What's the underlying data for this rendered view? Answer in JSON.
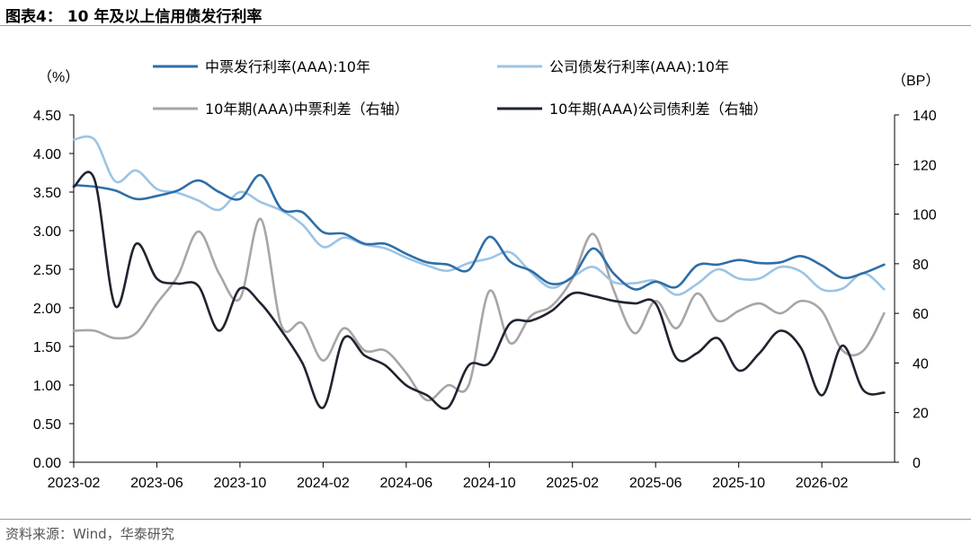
{
  "title": "图表4：  10 年及以上信用债发行利率",
  "source": "资料来源：Wind，华泰研究",
  "chart_data": {
    "type": "line",
    "x_ticks": [
      "2023-02",
      "2023-06",
      "2023-10",
      "2024-02",
      "2024-06",
      "2024-10",
      "2025-02",
      "2025-06",
      "2025-10",
      "2026-02"
    ],
    "x_range": [
      0,
      39.5
    ],
    "left_axis": {
      "unit": "（%）",
      "ylim": [
        0,
        4.5
      ],
      "ticks": [
        "0.00",
        "0.50",
        "1.00",
        "1.50",
        "2.00",
        "2.50",
        "3.00",
        "3.50",
        "4.00",
        "4.50"
      ]
    },
    "right_axis": {
      "unit": "（BP）",
      "ylim": [
        0,
        140
      ],
      "ticks": [
        "0",
        "20",
        "40",
        "60",
        "80",
        "100",
        "120",
        "140"
      ]
    },
    "legend": [
      "中票发行利率(AAA):10年",
      "公司债发行利率(AAA):10年",
      "10年期(AAA)中票利差（右轴）",
      "10年期(AAA)公司债利差（右轴）"
    ],
    "series": [
      {
        "name": "中票发行利率(AAA):10年",
        "axis": "left",
        "color": "#2e6ea8",
        "x": [
          0,
          1,
          2,
          3,
          4,
          5,
          6,
          7,
          8,
          9,
          10,
          11,
          12,
          13,
          14,
          15,
          16,
          17,
          18,
          19,
          20,
          21,
          22,
          23,
          24,
          25,
          26,
          27,
          28,
          29,
          30,
          31,
          32,
          33,
          34,
          35,
          36,
          37,
          38,
          39
        ],
        "values": [
          3.59,
          3.57,
          3.52,
          3.41,
          3.45,
          3.52,
          3.65,
          3.5,
          3.41,
          3.72,
          3.28,
          3.24,
          2.98,
          2.96,
          2.83,
          2.83,
          2.7,
          2.59,
          2.56,
          2.49,
          2.92,
          2.6,
          2.48,
          2.31,
          2.4,
          2.77,
          2.44,
          2.24,
          2.34,
          2.27,
          2.55,
          2.56,
          2.62,
          2.58,
          2.59,
          2.67,
          2.55,
          2.39,
          2.45,
          2.56
        ]
      },
      {
        "name": "公司债发行利率(AAA):10年",
        "axis": "left",
        "color": "#9cc4e4",
        "x": [
          0,
          1,
          2,
          3,
          4,
          5,
          6,
          7,
          8,
          9,
          10,
          11,
          12,
          13,
          14,
          15,
          16,
          17,
          18,
          19,
          20,
          21,
          22,
          23,
          24,
          25,
          26,
          27,
          28,
          29,
          30,
          31,
          32,
          33,
          34,
          35,
          36,
          37,
          38,
          39
        ],
        "values": [
          4.18,
          4.18,
          3.64,
          3.78,
          3.54,
          3.49,
          3.39,
          3.27,
          3.5,
          3.37,
          3.26,
          3.08,
          2.79,
          2.91,
          2.82,
          2.77,
          2.65,
          2.55,
          2.48,
          2.58,
          2.64,
          2.72,
          2.46,
          2.26,
          2.4,
          2.53,
          2.33,
          2.32,
          2.35,
          2.17,
          2.31,
          2.5,
          2.38,
          2.38,
          2.53,
          2.47,
          2.24,
          2.25,
          2.45,
          2.24
        ]
      },
      {
        "name": "10年期(AAA)中票利差（右轴）",
        "axis": "right",
        "color": "#a6a6a6",
        "x": [
          0,
          1,
          2,
          3,
          4,
          5,
          6,
          7,
          8,
          9,
          10,
          11,
          12,
          13,
          14,
          15,
          16,
          17,
          18,
          19,
          20,
          21,
          22,
          23,
          24,
          25,
          26,
          27,
          28,
          29,
          30,
          31,
          32,
          33,
          34,
          35,
          36,
          37,
          38,
          39
        ],
        "values": [
          53,
          53,
          50,
          52,
          64,
          75,
          93,
          76,
          66,
          98,
          55,
          56,
          41,
          54,
          45,
          45,
          36,
          25,
          31,
          31,
          69,
          48,
          59,
          63,
          74,
          92,
          69,
          52,
          65,
          54,
          68,
          57,
          61,
          64,
          60,
          65,
          61,
          45,
          45,
          60
        ]
      },
      {
        "name": "10年期(AAA)公司债利差（右轴）",
        "axis": "right",
        "color": "#1f2430",
        "x": [
          0,
          1,
          2,
          3,
          4,
          5,
          6,
          7,
          8,
          9,
          10,
          11,
          12,
          13,
          14,
          15,
          16,
          17,
          18,
          19,
          20,
          21,
          22,
          23,
          24,
          25,
          26,
          27,
          28,
          29,
          30,
          31,
          32,
          33,
          34,
          35,
          36,
          37,
          38,
          39
        ],
        "values": [
          111,
          114,
          63,
          88,
          74,
          72,
          71,
          53,
          70,
          64,
          53,
          40,
          22,
          50,
          43,
          39,
          31,
          27,
          22,
          39,
          40,
          56,
          57,
          61,
          68,
          67,
          65,
          64,
          64,
          42,
          44,
          50,
          37,
          44,
          53,
          46,
          27,
          47,
          29,
          28
        ]
      }
    ]
  }
}
